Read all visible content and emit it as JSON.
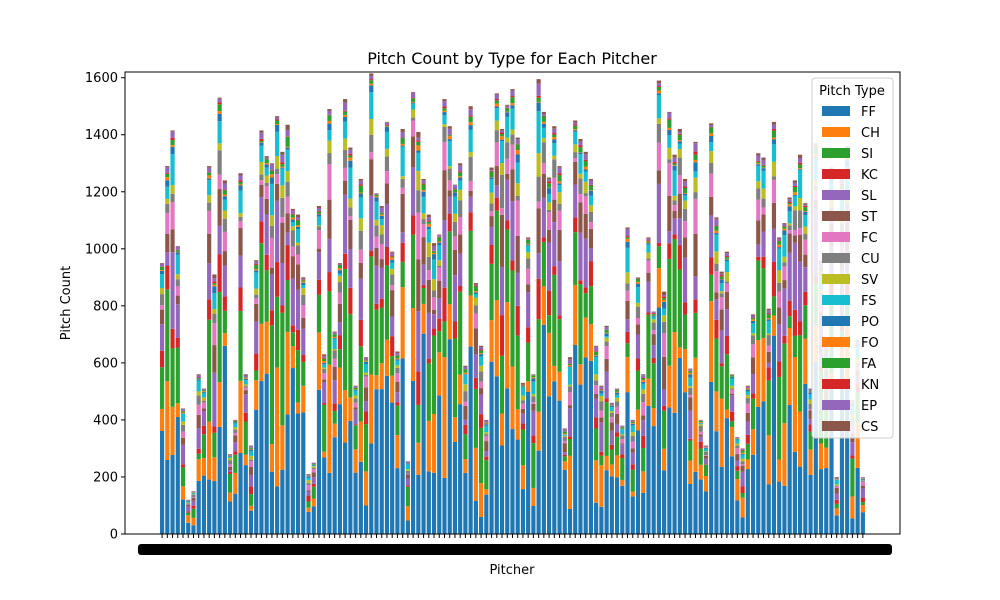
{
  "chart_data": {
    "type": "bar",
    "stacked": true,
    "title": "Pitch Count by Type for Each Pitcher",
    "xlabel": "Pitcher",
    "ylabel": "Pitch Count",
    "ylim": [
      0,
      1620
    ],
    "yticks": [
      0,
      200,
      400,
      600,
      800,
      1000,
      1200,
      1400,
      1600
    ],
    "grid": false,
    "legend": {
      "title": "Pitch Type",
      "placement": "top-right"
    },
    "series": [
      {
        "name": "FF",
        "color": "#1f77b4"
      },
      {
        "name": "CH",
        "color": "#ff7f0e"
      },
      {
        "name": "SI",
        "color": "#2ca02c"
      },
      {
        "name": "KC",
        "color": "#d62728"
      },
      {
        "name": "SL",
        "color": "#9467bd"
      },
      {
        "name": "ST",
        "color": "#8c564b"
      },
      {
        "name": "FC",
        "color": "#e377c2"
      },
      {
        "name": "CU",
        "color": "#7f7f7f"
      },
      {
        "name": "SV",
        "color": "#bcbd22"
      },
      {
        "name": "FS",
        "color": "#17becf"
      },
      {
        "name": "PO",
        "color": "#1f77b4"
      },
      {
        "name": "FO",
        "color": "#ff7f0e"
      },
      {
        "name": "FA",
        "color": "#2ca02c"
      },
      {
        "name": "KN",
        "color": "#d62728"
      },
      {
        "name": "EP",
        "color": "#9467bd"
      },
      {
        "name": "CS",
        "color": "#8c564b"
      }
    ],
    "pitcher_totals": [
      950,
      1290,
      1415,
      1010,
      440,
      120,
      150,
      560,
      510,
      1290,
      910,
      1530,
      1240,
      280,
      400,
      1265,
      560,
      310,
      960,
      1415,
      1325,
      1300,
      1465,
      1340,
      1435,
      1140,
      1120,
      900,
      210,
      250,
      1150,
      630,
      1490,
      710,
      950,
      1525,
      1355,
      520,
      1245,
      620,
      1615,
      1195,
      1150,
      1445,
      990,
      640,
      1420,
      255,
      1550,
      1410,
      1245,
      1120,
      1020,
      1050,
      1525,
      1430,
      1225,
      1300,
      590,
      1500,
      880,
      660,
      400,
      1285,
      1545,
      1420,
      1505,
      1560,
      1390,
      530,
      1040,
      560,
      1595,
      1480,
      1250,
      1430,
      1290,
      370,
      620,
      1450,
      1385,
      1340,
      1245,
      660,
      520,
      730,
      460,
      510,
      380,
      1075,
      400,
      900,
      560,
      1040,
      780,
      1590,
      850,
      1480,
      1330,
      1420,
      1245,
      580,
      1375,
      400,
      310,
      1440,
      1110,
      920,
      990,
      560,
      340,
      300,
      520,
      770,
      1335,
      1320,
      790,
      1445,
      1040,
      1090,
      1180,
      1240,
      1330,
      1160,
      510,
      1370,
      960,
      660,
      1285,
      200,
      1265,
      1360,
      470,
      680,
      200
    ],
    "pitcher_count": 135,
    "note_ticks_overlap": "x tick labels are too dense and overlap into a solid black band"
  }
}
